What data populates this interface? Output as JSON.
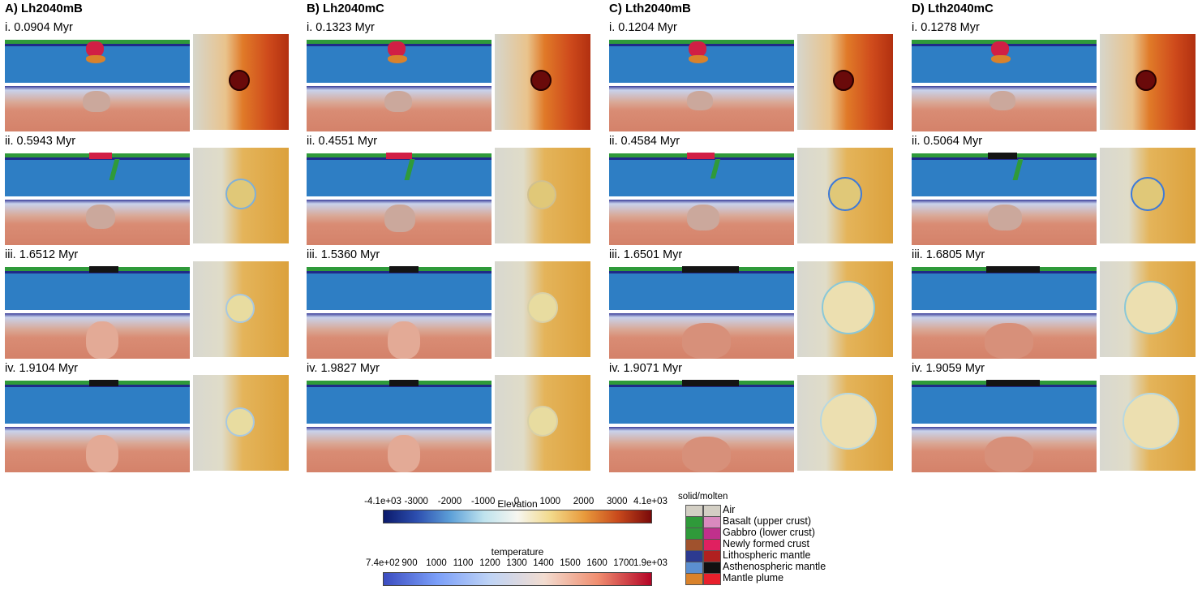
{
  "columns": [
    {
      "title": "A) Lh2040mB",
      "rows": [
        "i. 0.0904 Myr",
        "ii. 0.5943 Myr",
        "iii. 1.6512 Myr",
        "iv. 1.9104 Myr"
      ]
    },
    {
      "title": "B) Lh2040mC",
      "rows": [
        "i. 0.1323 Myr",
        "ii. 0.4551 Myr",
        "iii. 1.5360 Myr",
        "iv. 1.9827 Myr"
      ]
    },
    {
      "title": "C) Lth2040mB",
      "rows": [
        "i. 0.1204 Myr",
        "ii. 0.4584 Myr",
        "iii. 1.6501 Myr",
        "iv. 1.9071 Myr"
      ]
    },
    {
      "title": "D) Lth2040mC",
      "rows": [
        "i. 0.1278 Myr",
        "ii. 0.5064 Myr",
        "iii. 1.6805 Myr",
        "iv. 1.9059 Myr"
      ]
    }
  ],
  "elevation_bar": {
    "title": "Elevation",
    "ticks": [
      "-4.1e+03",
      "-3000",
      "-2000",
      "-1000",
      "0",
      "1000",
      "2000",
      "3000",
      "4.1e+03"
    ],
    "colors": [
      "#0b1a6b",
      "#2d4fb0",
      "#5da0d8",
      "#bfe3ee",
      "#f6f6f0",
      "#f2d98a",
      "#e89a3c",
      "#c94a1c",
      "#7a0a0a"
    ]
  },
  "temperature_bar": {
    "title": "temperature",
    "ticks": [
      "7.4e+02",
      "900",
      "1000",
      "1100",
      "1200",
      "1300",
      "1400",
      "1500",
      "1600",
      "1700",
      "1.9e+03"
    ],
    "colors": [
      "#3b4cc0",
      "#7b9ff9",
      "#c0d4f5",
      "#f2dcd0",
      "#f08e70",
      "#b40426"
    ]
  },
  "legend": {
    "title": "solid/molten",
    "items": [
      {
        "label": "Air",
        "solid": "#d3cfc4",
        "molten": "#d3cfc4"
      },
      {
        "label": "Basalt (upper crust)",
        "solid": "#2f9a3a",
        "molten": "#d98abf"
      },
      {
        "label": "Gabbro (lower crust)",
        "solid": "#2f9a3a",
        "molten": "#c0308c"
      },
      {
        "label": "Newly formed crust",
        "solid": "#a0522d",
        "molten": "#e02060"
      },
      {
        "label": "Lithospheric mantle",
        "solid": "#2c3a90",
        "molten": "#b02020"
      },
      {
        "label": "Asthenospheric mantle",
        "solid": "#5b8fd0",
        "molten": "#111111"
      },
      {
        "label": "Mantle plume",
        "solid": "#d9822b",
        "molten": "#e8202c"
      }
    ]
  }
}
